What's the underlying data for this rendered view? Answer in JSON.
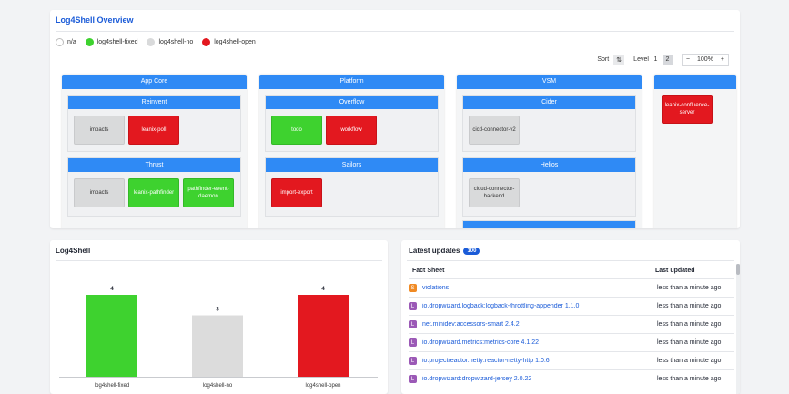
{
  "overview": {
    "title": "Log4Shell Overview",
    "legend": [
      {
        "label": "n/a",
        "color": "#ffffff"
      },
      {
        "label": "log4shell-fixed",
        "color": "#3ed22f"
      },
      {
        "label": "log4shell-no",
        "color": "#d9dadb"
      },
      {
        "label": "log4shell-open",
        "color": "#e3181f"
      }
    ],
    "controls": {
      "sort_label": "Sort",
      "sort_icon": "sort-icon",
      "level_label": "Level",
      "levels": [
        "1",
        "2"
      ],
      "active_level": "2",
      "zoom_minus": "−",
      "zoom_value": "100%",
      "zoom_plus": "+"
    },
    "groups": [
      {
        "title": "App Core",
        "subgroups": [
          {
            "title": "Reinvent",
            "items": [
              {
                "label": "impacts",
                "status": "grey"
              },
              {
                "label": "leanix-poll",
                "status": "red"
              }
            ]
          },
          {
            "title": "Thrust",
            "items": [
              {
                "label": "impacts",
                "status": "grey"
              },
              {
                "label": "leanix-pathfinder",
                "status": "green"
              },
              {
                "label": "pathfinder-event-daemon",
                "status": "green"
              }
            ]
          }
        ]
      },
      {
        "title": "Platform",
        "subgroups": [
          {
            "title": "Overflow",
            "items": [
              {
                "label": "todo",
                "status": "green"
              },
              {
                "label": "workflow",
                "status": "red"
              }
            ]
          },
          {
            "title": "Sailors",
            "items": [
              {
                "label": "import-export",
                "status": "red"
              }
            ]
          }
        ]
      },
      {
        "title": "VSM",
        "subgroups": [
          {
            "title": "Cider",
            "items": [
              {
                "label": "cicd-connector-v2",
                "status": "grey"
              }
            ]
          },
          {
            "title": "Helios",
            "items": [
              {
                "label": "cloud-connector-backend",
                "status": "grey"
              }
            ]
          }
        ]
      },
      {
        "title": "",
        "items": [
          {
            "label": "leanix-confluence-server",
            "status": "red"
          }
        ]
      }
    ]
  },
  "chart_card": {
    "title": "Log4Shell"
  },
  "chart_data": {
    "type": "bar",
    "categories": [
      "log4shell-fixed",
      "log4shell-no",
      "log4shell-open"
    ],
    "values": [
      4,
      3,
      4
    ],
    "colors": [
      "#3ed22f",
      "#dcdcdc",
      "#e3181f"
    ],
    "title": "",
    "xlabel": "",
    "ylabel": "",
    "ylim": [
      0,
      4
    ],
    "grid": false,
    "data_labels": true
  },
  "updates": {
    "title": "Latest updates",
    "count": "100",
    "col_fact_sheet": "Fact Sheet",
    "col_last_updated": "Last updated",
    "rows": [
      {
        "tag": "S",
        "tag_color": "#f08a24",
        "name": "violations",
        "updated": "less than a minute ago"
      },
      {
        "tag": "L",
        "tag_color": "#9b59b6",
        "name": "io.dropwizard.logback:logback-throttling-appender 1.1.0",
        "updated": "less than a minute ago"
      },
      {
        "tag": "L",
        "tag_color": "#9b59b6",
        "name": "net.minidev:accessors-smart 2.4.2",
        "updated": "less than a minute ago"
      },
      {
        "tag": "L",
        "tag_color": "#9b59b6",
        "name": "io.dropwizard.metrics:metrics-core 4.1.22",
        "updated": "less than a minute ago"
      },
      {
        "tag": "L",
        "tag_color": "#9b59b6",
        "name": "io.projectreactor.netty:reactor-netty-http 1.0.6",
        "updated": "less than a minute ago"
      },
      {
        "tag": "L",
        "tag_color": "#9b59b6",
        "name": "io.dropwizard:dropwizard-jersey 2.0.22",
        "updated": "less than a minute ago"
      }
    ]
  }
}
